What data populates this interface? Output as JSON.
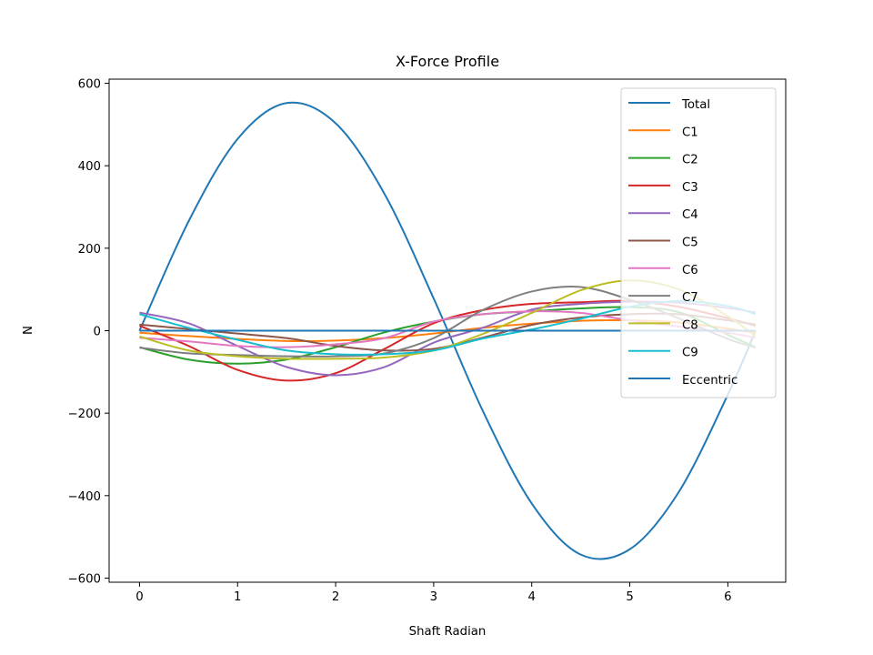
{
  "chart_data": {
    "type": "line",
    "title": "X-Force Profile",
    "xlabel": "Shaft Radian",
    "ylabel": "N",
    "xlim": [
      -0.31,
      6.59
    ],
    "ylim": [
      -610,
      610
    ],
    "xticks": [
      0,
      1,
      2,
      3,
      4,
      5,
      6
    ],
    "xtick_labels": [
      "0",
      "1",
      "2",
      "3",
      "4",
      "5",
      "6"
    ],
    "yticks": [
      600,
      400,
      200,
      0,
      -200,
      -400,
      -600
    ],
    "ytick_labels": [
      "600",
      "400",
      "200",
      "0",
      "−200",
      "−400",
      "−600"
    ],
    "grid": false,
    "legend_position": "upper-right",
    "x": [
      0,
      0.5,
      1,
      1.5,
      2,
      2.5,
      3,
      3.5,
      4,
      4.5,
      5,
      5.5,
      6,
      6.283
    ],
    "series": [
      {
        "name": "Total",
        "color": "#1f77b4",
        "values": [
          0,
          265,
          465,
          552,
          503,
          331,
          78,
          -194,
          -419,
          -543,
          -530,
          -391,
          -155,
          0
        ]
      },
      {
        "name": "C1",
        "color": "#ff7f0e",
        "values": [
          -5,
          -13,
          -20,
          -25,
          -24,
          -18,
          -7,
          7,
          17,
          24,
          25,
          20,
          5,
          -5
        ]
      },
      {
        "name": "C2",
        "color": "#2ca02c",
        "values": [
          -40,
          -70,
          -80,
          -70,
          -40,
          -4,
          22,
          40,
          47,
          54,
          57,
          45,
          -10,
          -40
        ]
      },
      {
        "name": "C3",
        "color": "#d62728",
        "values": [
          12,
          -37,
          -95,
          -121,
          -103,
          -44,
          18,
          50,
          65,
          69,
          72,
          58,
          30,
          12
        ]
      },
      {
        "name": "C4",
        "color": "#9467bd",
        "values": [
          44,
          18,
          -37,
          -88,
          -108,
          -88,
          -29,
          7,
          51,
          65,
          70,
          68,
          55,
          44
        ]
      },
      {
        "name": "C5",
        "color": "#8c564b",
        "values": [
          15,
          4,
          -7,
          -18,
          -37,
          -48,
          -44,
          -17,
          14,
          32,
          40,
          40,
          25,
          15
        ]
      },
      {
        "name": "C6",
        "color": "#e377c2",
        "values": [
          -17,
          -26,
          -37,
          -40,
          -33,
          -18,
          22,
          40,
          47,
          43,
          25,
          10,
          -5,
          -17
        ]
      },
      {
        "name": "C7",
        "color": "#7f7f7f",
        "values": [
          -41,
          -55,
          -59,
          -62,
          -62,
          -55,
          -18,
          50,
          95,
          106,
          75,
          30,
          -20,
          -41
        ]
      },
      {
        "name": "C8",
        "color": "#bcbd22",
        "values": [
          -14,
          -48,
          -62,
          -68,
          -68,
          -65,
          -48,
          -8,
          43,
          98,
          122,
          100,
          35,
          -14
        ]
      },
      {
        "name": "C9",
        "color": "#17becf",
        "values": [
          40,
          7,
          -22,
          -48,
          -57,
          -57,
          -48,
          -19,
          3,
          29,
          58,
          72,
          60,
          40
        ]
      },
      {
        "name": "Eccentric",
        "color": "#1f77b4",
        "values": [
          0,
          0,
          0,
          0,
          0,
          0,
          0,
          0,
          0,
          0,
          0,
          0,
          0,
          0
        ]
      }
    ]
  }
}
